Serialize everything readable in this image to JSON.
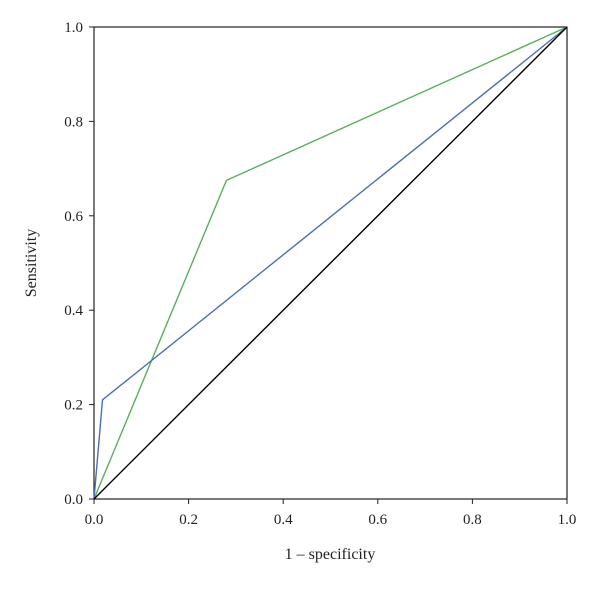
{
  "chart_data": {
    "type": "line",
    "title": "",
    "xlabel": "1 – specificity",
    "ylabel": "Sensitivity",
    "xlim": [
      0,
      1
    ],
    "ylim": [
      0,
      1
    ],
    "xticks": [
      "0.0",
      "0.2",
      "0.4",
      "0.6",
      "0.8",
      "1.0"
    ],
    "yticks": [
      "0.0",
      "0.2",
      "0.4",
      "0.6",
      "0.8",
      "1.0"
    ],
    "grid": false,
    "legend": "none",
    "series": [
      {
        "color": "#5aaf5a",
        "x": [
          0.0,
          0.28,
          1.0
        ],
        "y": [
          0.0,
          0.675,
          1.0
        ]
      },
      {
        "color": "#4a6fb0",
        "x": [
          0.0,
          0.018,
          1.0
        ],
        "y": [
          0.0,
          0.21,
          1.0
        ]
      },
      {
        "color": "#000000",
        "x": [
          0.0,
          1.0
        ],
        "y": [
          0.0,
          1.0
        ]
      }
    ]
  }
}
